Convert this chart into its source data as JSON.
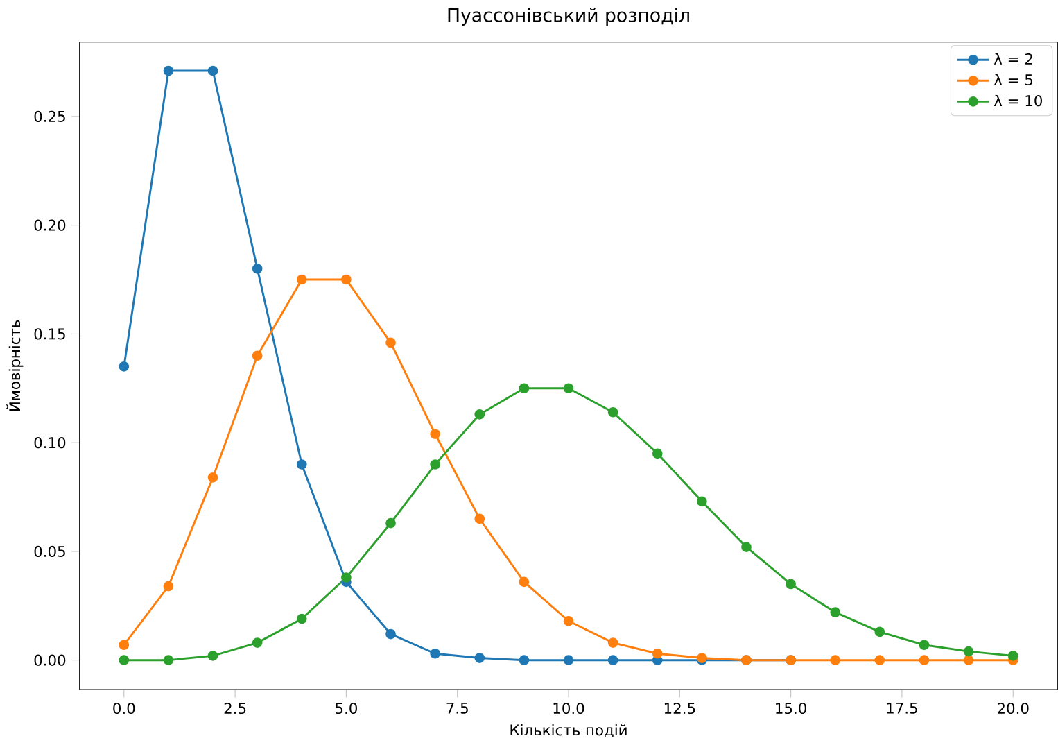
{
  "chart_data": {
    "type": "line",
    "title": "Пуассонівський розподіл",
    "xlabel": "Кількість подій",
    "ylabel": "Ймовірність",
    "x": [
      0,
      1,
      2,
      3,
      4,
      5,
      6,
      7,
      8,
      9,
      10,
      11,
      12,
      13,
      14,
      15,
      16,
      17,
      18,
      19,
      20
    ],
    "series": [
      {
        "name": "λ = 2",
        "color": "#1f77b4",
        "values": [
          0.135,
          0.271,
          0.271,
          0.18,
          0.09,
          0.036,
          0.012,
          0.003,
          0.001,
          0.0,
          0.0,
          0.0,
          0.0,
          0.0,
          0.0,
          0.0,
          null,
          null,
          null,
          null,
          null
        ]
      },
      {
        "name": "λ = 5",
        "color": "#ff7f0e",
        "values": [
          0.007,
          0.034,
          0.084,
          0.14,
          0.175,
          0.175,
          0.146,
          0.104,
          0.065,
          0.036,
          0.018,
          0.008,
          0.003,
          0.001,
          0.0,
          0.0,
          0.0,
          0.0,
          0.0,
          0.0,
          0.0
        ]
      },
      {
        "name": "λ = 10",
        "color": "#2ca02c",
        "values": [
          0.0,
          0.0,
          0.002,
          0.008,
          0.019,
          0.038,
          0.063,
          0.09,
          0.113,
          0.125,
          0.125,
          0.114,
          0.095,
          0.073,
          0.052,
          0.035,
          0.022,
          0.013,
          0.007,
          0.004,
          0.002
        ]
      }
    ],
    "xlim": [
      -1,
      21
    ],
    "ylim": [
      -0.0135,
      0.2842
    ],
    "xticks": [
      {
        "value": 0,
        "label": "0.0"
      },
      {
        "value": 2.5,
        "label": "2.5"
      },
      {
        "value": 5,
        "label": "5.0"
      },
      {
        "value": 7.5,
        "label": "7.5"
      },
      {
        "value": 10,
        "label": "10.0"
      },
      {
        "value": 12.5,
        "label": "12.5"
      },
      {
        "value": 15,
        "label": "15.0"
      },
      {
        "value": 17.5,
        "label": "17.5"
      },
      {
        "value": 20,
        "label": "20.0"
      }
    ],
    "yticks": [
      {
        "value": 0,
        "label": "0.00"
      },
      {
        "value": 0.05,
        "label": "0.05"
      },
      {
        "value": 0.1,
        "label": "0.10"
      },
      {
        "value": 0.15,
        "label": "0.15"
      },
      {
        "value": 0.2,
        "label": "0.20"
      },
      {
        "value": 0.25,
        "label": "0.25"
      }
    ],
    "marker": "circle",
    "line_style": "solid",
    "legend": "top right"
  }
}
